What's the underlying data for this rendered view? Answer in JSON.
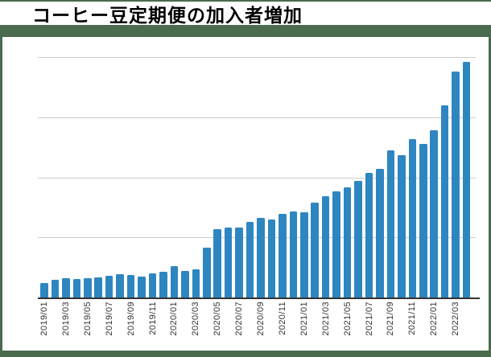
{
  "page": {
    "background_color": "#4b6b4e",
    "card_color": "#ffffff"
  },
  "header": {
    "title": "コーヒー豆定期便の加入者増加"
  },
  "chart_data": {
    "type": "bar",
    "title": "コーヒー豆定期便の加入者増加",
    "xlabel": "",
    "ylabel": "",
    "legend": "none",
    "grid": "horizontal",
    "y_axis_tick_labels_visible": false,
    "gridline_values": [
      250,
      500,
      750,
      1000
    ],
    "ylim": [
      0,
      1040
    ],
    "bar_color": "#2e86c1",
    "gridline_color": "#cccccc",
    "axis_color": "#333333",
    "tick_label_color": "#333333",
    "x": [
      "2019/01",
      "2019/02",
      "2019/03",
      "2019/04",
      "2019/05",
      "2019/06",
      "2019/07",
      "2019/08",
      "2019/09",
      "2019/10",
      "2019/11",
      "2019/12",
      "2020/01",
      "2020/02",
      "2020/03",
      "2020/04",
      "2020/05",
      "2020/06",
      "2020/07",
      "2020/08",
      "2020/09",
      "2020/10",
      "2020/11",
      "2020/12",
      "2021/01",
      "2021/02",
      "2021/03",
      "2021/04",
      "2021/05",
      "2021/06",
      "2021/07",
      "2021/08",
      "2021/09",
      "2021/10",
      "2021/11",
      "2021/12",
      "2022/01",
      "2022/02",
      "2022/03",
      "2022/04"
    ],
    "values": [
      59,
      75,
      80,
      78,
      81,
      84,
      89,
      97,
      92,
      86,
      99,
      107,
      132,
      111,
      117,
      206,
      284,
      291,
      291,
      316,
      331,
      326,
      348,
      358,
      355,
      394,
      420,
      442,
      457,
      485,
      519,
      534,
      611,
      593,
      660,
      638,
      695,
      800,
      939,
      980
    ],
    "x_tick_labels_shown": [
      "2019/01",
      "2019/03",
      "2019/05",
      "2019/07",
      "2019/09",
      "2019/11",
      "2020/01",
      "2020/03",
      "2020/05",
      "2020/07",
      "2020/09",
      "2020/11",
      "2021/01",
      "2021/03",
      "2021/05",
      "2021/07",
      "2021/09",
      "2021/11",
      "2022/01",
      "2022/03"
    ]
  }
}
